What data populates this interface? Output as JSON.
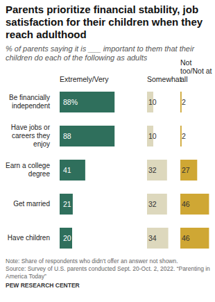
{
  "chart_data": {
    "type": "bar",
    "orientation": "horizontal",
    "title": "Parents prioritize financial stability, job satisfaction for their children when they reach adulthood",
    "subtitle": "% of parents saying it is ___ important to them that their children do each of the following as adults",
    "categories": [
      "Be financially independent",
      "Have jobs or careers they enjoy",
      "Earn a college degree",
      "Get married",
      "Have children"
    ],
    "series": [
      {
        "name": "Extremely/Very",
        "color": "#2f6f5c",
        "values": [
          88,
          88,
          41,
          21,
          20
        ],
        "value_labels": [
          "88%",
          "88",
          "41",
          "21",
          "20"
        ]
      },
      {
        "name": "Somewhat",
        "color": "#ddd8bd",
        "values": [
          10,
          10,
          32,
          32,
          34
        ]
      },
      {
        "name": "Not too/Not at all",
        "color": "#cfa734",
        "values": [
          2,
          2,
          27,
          46,
          46
        ]
      }
    ],
    "xlim": [
      0,
      100
    ],
    "data_labels": true,
    "tick_labels": "y",
    "note": "Note: Share of respondents who didn't offer an answer not shown.",
    "source": "Source: Survey of U.S. parents conducted Sept. 20-Oct. 2, 2022. “Parenting in America Today”",
    "credit": "PEW RESEARCH CENTER"
  }
}
